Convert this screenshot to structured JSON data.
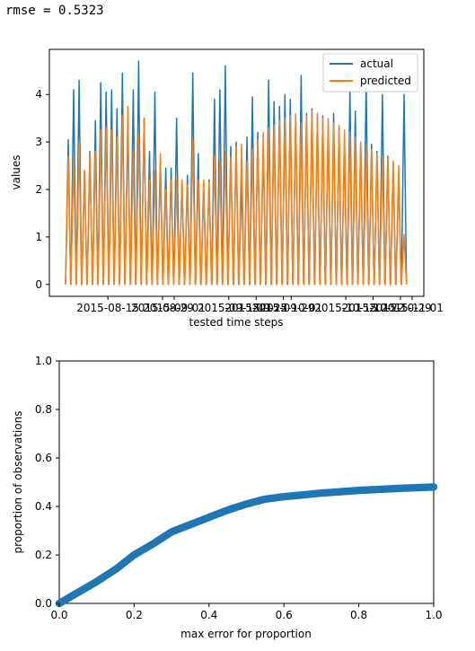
{
  "output": {
    "rmse_text": "rmse = 0.5323"
  },
  "chart_data": [
    {
      "type": "line",
      "xlabel": "tested time steps",
      "ylabel": "values",
      "ylim": [
        -0.25,
        4.95
      ],
      "yticks": [
        0,
        1,
        2,
        3,
        4
      ],
      "xticks": [
        {
          "label": "2015-08-15",
          "day": 11
        },
        {
          "label": "2015-08-29",
          "day": 25
        },
        {
          "label": "2015-09-01",
          "day": 28
        },
        {
          "label": "2015-09-15",
          "day": 42
        },
        {
          "label": "2015-09-22",
          "day": 49
        },
        {
          "label": "2015-09-29",
          "day": 56
        },
        {
          "label": "2015-10-01",
          "day": 58
        },
        {
          "label": "2015-10-15",
          "day": 72
        },
        {
          "label": "2015-10-22",
          "day": 79
        },
        {
          "label": "2015-10-29",
          "day": 86
        },
        {
          "label": "2015-11-01",
          "day": 89
        }
      ],
      "x_range_days": [
        -4,
        92
      ],
      "grid": false,
      "legend": "top-right",
      "series_colors": {
        "actual": "#1f77b4",
        "predicted": "#ff7f0e"
      },
      "series": [
        {
          "name": "actual",
          "peaks": [
            3.05,
            4.1,
            4.3,
            2.4,
            2.8,
            3.45,
            4.25,
            4.05,
            4.1,
            3.7,
            4.45,
            3.3,
            4.1,
            4.7,
            3.5,
            2.8,
            4.05,
            2.55,
            2.45,
            2.45,
            3.5,
            2.2,
            2.3,
            4.45,
            2.75,
            2.05,
            2.2,
            3.9,
            4.1,
            4.6,
            2.9,
            3.0,
            2.2,
            3.1,
            3.95,
            3.2,
            2.9,
            4.3,
            3.85,
            3.75,
            4.0,
            3.9,
            3.5,
            4.4,
            3.6,
            3.7,
            3.55,
            3.55,
            3.35,
            3.6,
            3.3,
            3.05,
            4.1,
            3.65,
            3.0,
            4.3,
            2.95,
            2.8,
            4.0,
            2.7,
            2.55,
            2.3,
            4.0
          ]
        },
        {
          "name": "predicted",
          "peaks": [
            2.7,
            2.65,
            3.0,
            2.4,
            2.75,
            2.8,
            3.25,
            3.3,
            3.25,
            3.1,
            3.55,
            3.75,
            2.8,
            3.15,
            3.5,
            2.2,
            2.4,
            2.75,
            2.0,
            2.2,
            2.2,
            2.2,
            2.1,
            3.05,
            2.2,
            2.2,
            2.15,
            2.7,
            2.6,
            2.8,
            2.7,
            2.9,
            2.95,
            2.6,
            2.85,
            3.05,
            3.2,
            3.3,
            3.35,
            3.45,
            3.5,
            3.55,
            3.6,
            3.4,
            3.55,
            3.65,
            3.6,
            3.5,
            3.5,
            3.4,
            3.35,
            3.25,
            3.2,
            3.1,
            3.0,
            2.95,
            2.85,
            2.75,
            2.7,
            2.65,
            2.6,
            2.5,
            1.05
          ]
        }
      ]
    },
    {
      "type": "scatter",
      "xlabel": "max error for proportion",
      "ylabel": "proportion of observations",
      "xlim": [
        0,
        1
      ],
      "ylim": [
        0,
        1
      ],
      "xticks": [
        0.0,
        0.2,
        0.4,
        0.6,
        0.8,
        1.0
      ],
      "yticks": [
        0.0,
        0.2,
        0.4,
        0.6,
        0.8,
        1.0
      ],
      "tick_labels_x": [
        "0.0",
        "0.2",
        "0.4",
        "0.6",
        "0.8",
        "1.0"
      ],
      "tick_labels_y": [
        "0.0",
        "0.2",
        "0.4",
        "0.6",
        "0.8",
        "1.0"
      ],
      "grid": false,
      "marker_color": "#1f77b4",
      "curve": [
        {
          "x": 0.0,
          "y": 0.0
        },
        {
          "x": 0.05,
          "y": 0.045
        },
        {
          "x": 0.1,
          "y": 0.09
        },
        {
          "x": 0.15,
          "y": 0.14
        },
        {
          "x": 0.2,
          "y": 0.2
        },
        {
          "x": 0.25,
          "y": 0.245
        },
        {
          "x": 0.3,
          "y": 0.295
        },
        {
          "x": 0.35,
          "y": 0.325
        },
        {
          "x": 0.4,
          "y": 0.355
        },
        {
          "x": 0.45,
          "y": 0.385
        },
        {
          "x": 0.5,
          "y": 0.41
        },
        {
          "x": 0.55,
          "y": 0.43
        },
        {
          "x": 0.6,
          "y": 0.44
        },
        {
          "x": 0.7,
          "y": 0.455
        },
        {
          "x": 0.8,
          "y": 0.466
        },
        {
          "x": 0.9,
          "y": 0.474
        },
        {
          "x": 1.0,
          "y": 0.48
        }
      ]
    }
  ]
}
